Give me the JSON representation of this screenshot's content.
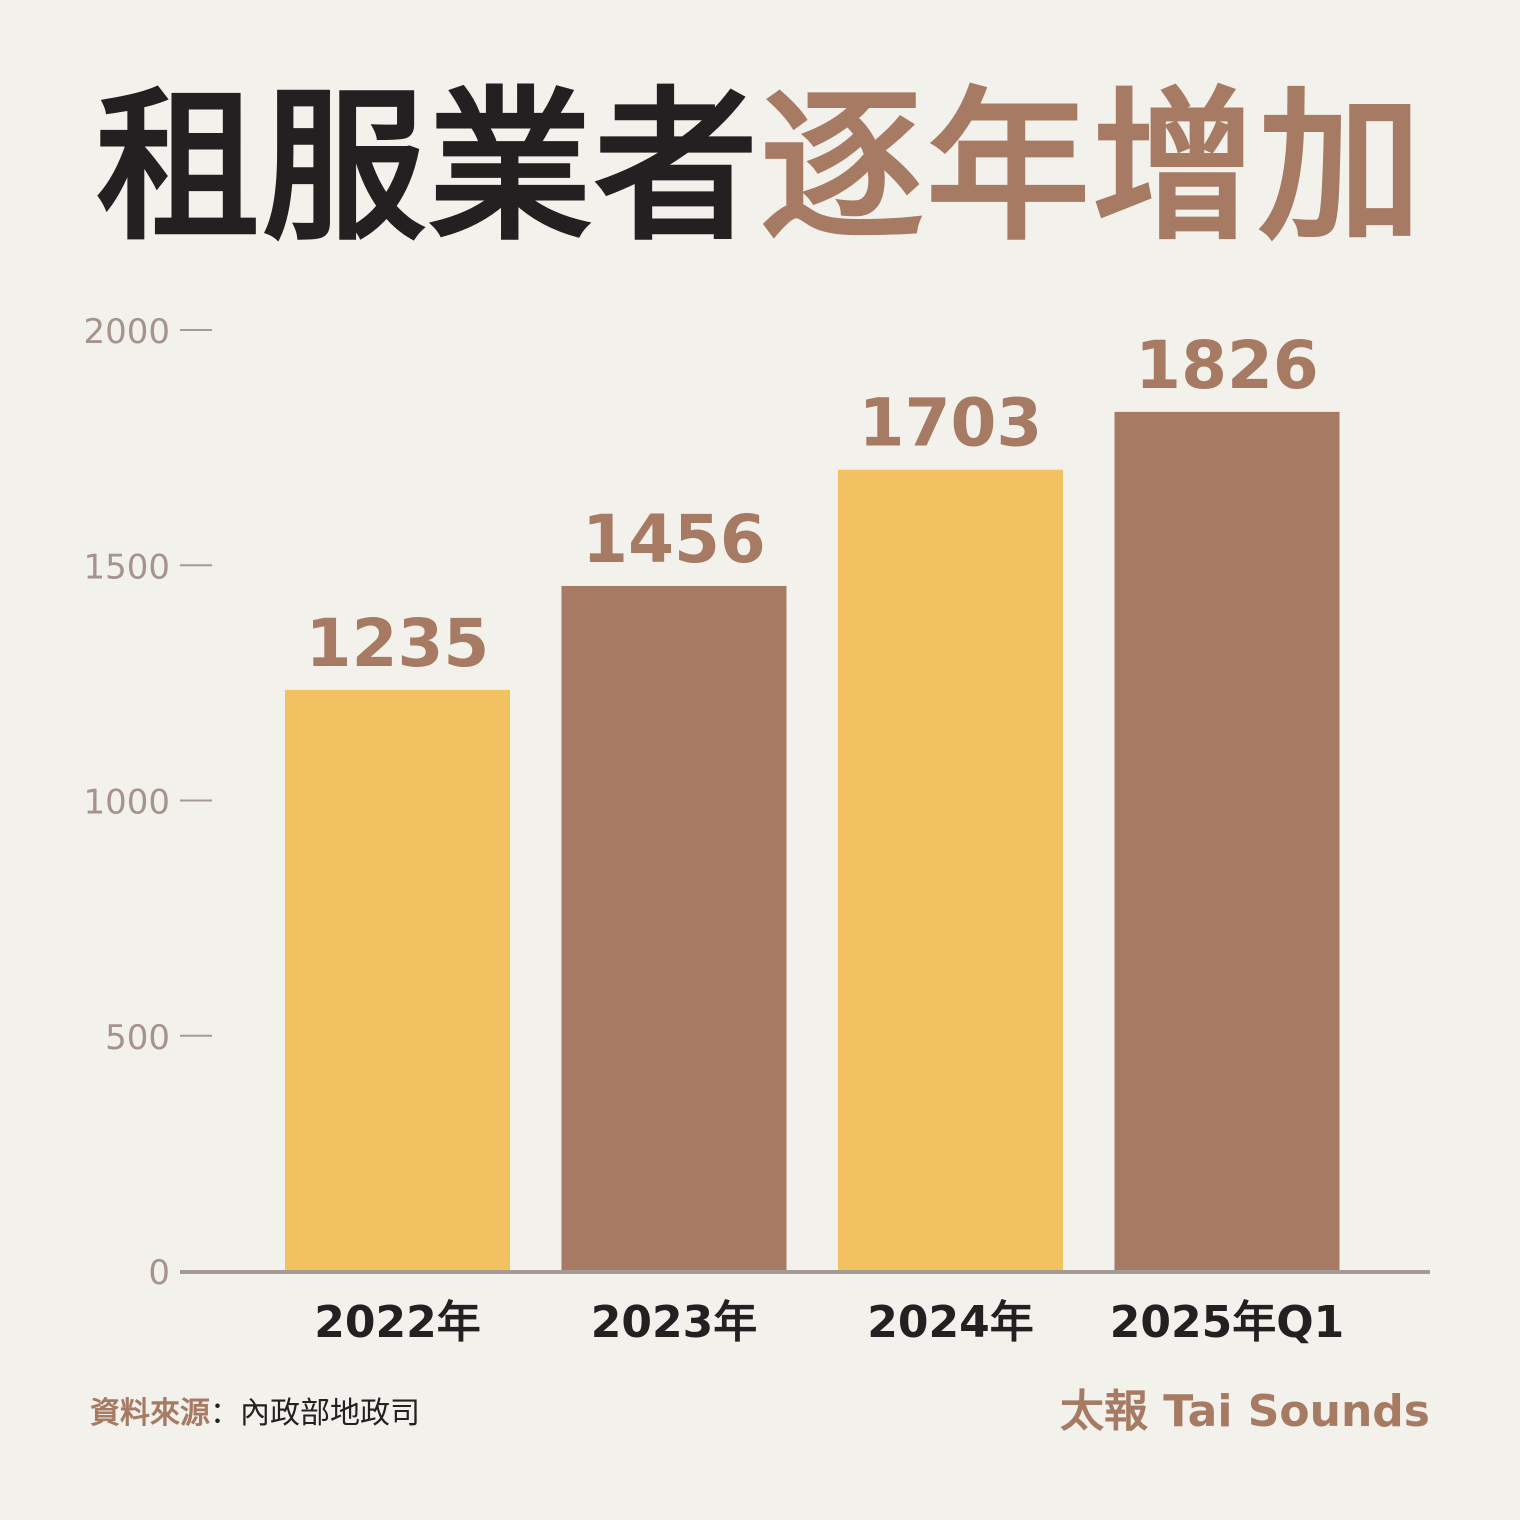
{
  "title": {
    "part1": "租服業者",
    "part2": "逐年增加"
  },
  "colors": {
    "background": "#f2f1ec",
    "title_dark": "#222020",
    "accent_brown": "#a67a63",
    "accent_yellow": "#f2c160",
    "axis": "#a59a95",
    "tick_text": "#a6948c"
  },
  "chart_data": {
    "type": "bar",
    "categories": [
      "2022年",
      "2023年",
      "2024年",
      "2025年Q1"
    ],
    "values": [
      1235,
      1456,
      1703,
      1826
    ],
    "bar_colors": [
      "#f2c160",
      "#a67a63",
      "#f2c160",
      "#a67a63"
    ],
    "ylim": [
      0,
      2000
    ],
    "yticks": [
      0,
      500,
      1000,
      1500,
      2000
    ],
    "grid": false,
    "data_labels": true
  },
  "footer": {
    "source_label": "資料來源",
    "source_sep": "：",
    "source_value": "內政部地政司",
    "brand": "太報 Tai Sounds"
  }
}
